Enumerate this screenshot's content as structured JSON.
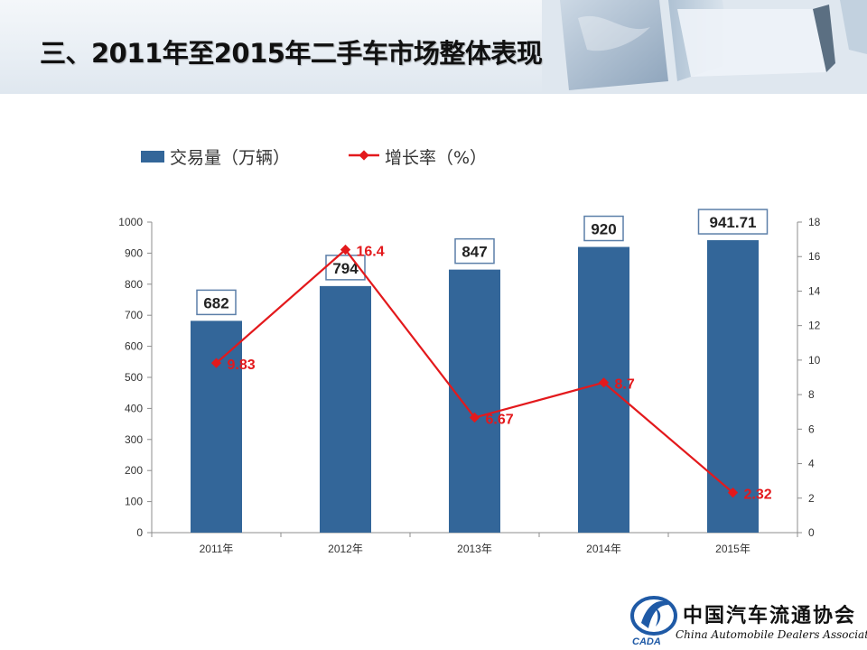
{
  "title": "三、2011年至2015年二手车市场整体表现",
  "logo": {
    "name_cn": "中国汽车流通协会",
    "name_en": "China Automobile Dealers Association",
    "abbr": "CADA"
  },
  "chart_data": {
    "type": "bar",
    "categories": [
      "2011年",
      "2012年",
      "2013年",
      "2014年",
      "2015年"
    ],
    "series": [
      {
        "name": "交易量（万辆）",
        "type": "bar",
        "axis": "left",
        "values": [
          682,
          794,
          847,
          920,
          941.71
        ],
        "labels": [
          "682",
          "794",
          "847",
          "920",
          "941.71"
        ],
        "color": "#336699"
      },
      {
        "name": "增长率（%）",
        "type": "line",
        "axis": "right",
        "values": [
          9.83,
          16.4,
          6.67,
          8.7,
          2.32
        ],
        "labels": [
          "9.83",
          "16.4",
          "6.67",
          "8.7",
          "2.32"
        ],
        "color": "#e3191c"
      }
    ],
    "ylim_left": [
      0,
      1000
    ],
    "yticks_left": [
      "0",
      "100",
      "200",
      "300",
      "400",
      "500",
      "600",
      "700",
      "800",
      "900",
      "1000"
    ],
    "ylim_right": [
      0,
      18
    ],
    "yticks_right": [
      "0",
      "2",
      "4",
      "6",
      "8",
      "10",
      "12",
      "14",
      "16",
      "18"
    ],
    "legend_position": "top-left",
    "grid": false
  },
  "colors": {
    "bar": "#336699",
    "line": "#e3191c",
    "header_bg": "#e8eef4"
  }
}
